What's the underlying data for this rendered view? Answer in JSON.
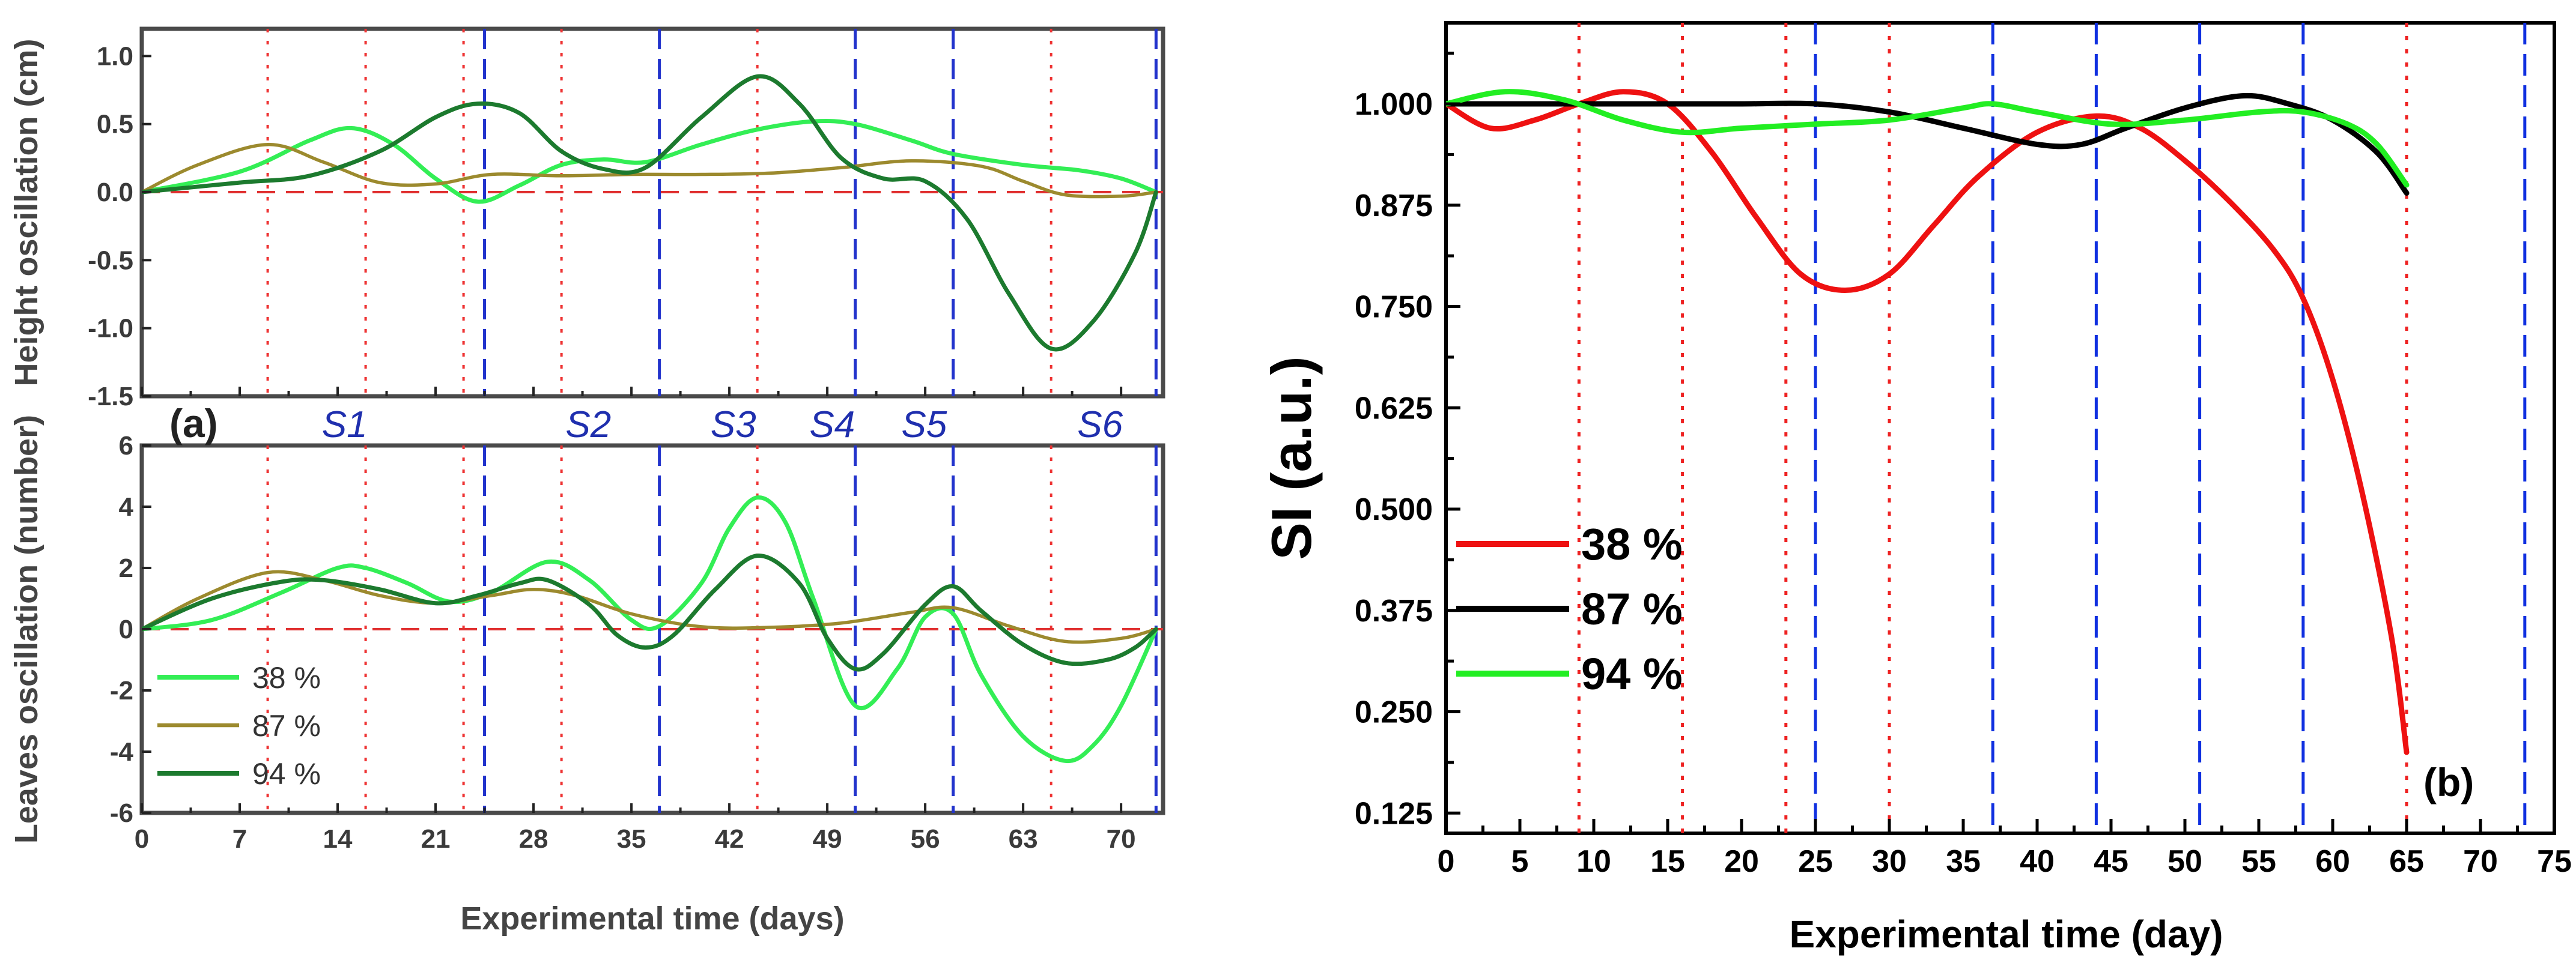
{
  "chart_data": [
    {
      "panel": "(a)",
      "type": "line",
      "xlabel": "Experimental time (days)",
      "xlim": [
        0,
        73
      ],
      "xticks": [
        0,
        7,
        14,
        21,
        28,
        35,
        42,
        49,
        56,
        63,
        70
      ],
      "red_dotted_lines_x": [
        9,
        16,
        23,
        30,
        44,
        65
      ],
      "blue_dashed_lines_x": [
        24.5,
        37,
        51,
        58,
        72.5
      ],
      "stages": [
        "S1",
        "S2",
        "S3",
        "S4",
        "S5",
        "S6"
      ],
      "legend": [
        "38 %",
        "87 %",
        "94 %"
      ],
      "colors": {
        "38 %": "#33ee55",
        "87 %": "#9c8a2e",
        "94 %": "#1c7a2e",
        "zero": "#e03030",
        "red_lines": "#ee3333",
        "blue_lines": "#2233cc",
        "stage_text": "#1f2fae"
      },
      "subplots": [
        {
          "ylabel": "Height oscillation (cm)",
          "ylim": [
            -1.5,
            1.2
          ],
          "yticks": [
            "1.0",
            "0.5",
            "0.0",
            "-0.5",
            "-1.0",
            "-1.5"
          ],
          "ytick_values": [
            1.0,
            0.5,
            0.0,
            -0.5,
            -1.0,
            -1.5
          ],
          "series": [
            {
              "name": "38 %",
              "x": [
                0,
                7,
                12,
                15,
                18,
                21,
                24,
                27,
                30,
                33,
                36,
                40,
                44,
                48,
                51,
                55,
                58,
                63,
                67,
                70,
                72.5
              ],
              "values": [
                0,
                0.15,
                0.38,
                0.47,
                0.35,
                0.1,
                -0.07,
                0.05,
                0.2,
                0.24,
                0.22,
                0.35,
                0.46,
                0.52,
                0.5,
                0.38,
                0.28,
                0.2,
                0.16,
                0.1,
                0
              ]
            },
            {
              "name": "87 %",
              "x": [
                0,
                4,
                9,
                13,
                17,
                21,
                25,
                30,
                35,
                40,
                45,
                50,
                55,
                60,
                63,
                66,
                70,
                72.5
              ],
              "values": [
                0,
                0.2,
                0.35,
                0.22,
                0.07,
                0.06,
                0.13,
                0.12,
                0.13,
                0.13,
                0.14,
                0.18,
                0.23,
                0.19,
                0.08,
                -0.02,
                -0.03,
                0
              ]
            },
            {
              "name": "94 %",
              "x": [
                0,
                7,
                12,
                17,
                21,
                24,
                27,
                30,
                33,
                36,
                40,
                44,
                47,
                50,
                53,
                56,
                59,
                62,
                65,
                68,
                71,
                72.5
              ],
              "values": [
                0,
                0.07,
                0.12,
                0.3,
                0.55,
                0.65,
                0.58,
                0.3,
                0.17,
                0.18,
                0.55,
                0.85,
                0.65,
                0.25,
                0.1,
                0.08,
                -0.2,
                -0.75,
                -1.15,
                -0.95,
                -0.45,
                0
              ]
            }
          ]
        },
        {
          "ylabel": "Leaves oscillation (number)",
          "ylim": [
            -6,
            6
          ],
          "yticks": [
            "6",
            "4",
            "2",
            "0",
            "-2",
            "-4",
            "-6"
          ],
          "ytick_values": [
            6,
            4,
            2,
            0,
            -2,
            -4,
            -6
          ],
          "series": [
            {
              "name": "38 %",
              "x": [
                0,
                5,
                10,
                14,
                16,
                19,
                22,
                25,
                29,
                32,
                35,
                37,
                40,
                42,
                44,
                46,
                48,
                51,
                54,
                56,
                58,
                60,
                63,
                66,
                68,
                70,
                72.5
              ],
              "values": [
                0,
                0.3,
                1.2,
                2.0,
                2.0,
                1.5,
                0.9,
                1.2,
                2.2,
                1.6,
                0.3,
                0.1,
                1.5,
                3.3,
                4.3,
                3.5,
                1.0,
                -2.5,
                -1.3,
                0.4,
                0.5,
                -1.5,
                -3.5,
                -4.3,
                -3.8,
                -2.5,
                0
              ]
            },
            {
              "name": "87 %",
              "x": [
                0,
                4,
                9,
                13,
                17,
                21,
                25,
                28,
                31,
                35,
                40,
                45,
                50,
                55,
                58,
                62,
                66,
                70,
                72.5
              ],
              "values": [
                0,
                1.0,
                1.85,
                1.6,
                1.1,
                0.85,
                1.1,
                1.3,
                1.1,
                0.5,
                0.08,
                0.06,
                0.2,
                0.55,
                0.7,
                0.1,
                -0.4,
                -0.3,
                0
              ]
            },
            {
              "name": "94 %",
              "x": [
                0,
                5,
                10,
                13,
                17,
                21,
                24,
                27,
                29,
                32,
                34,
                36,
                38,
                41,
                44,
                47,
                49,
                51,
                53,
                56,
                58,
                60,
                63,
                66,
                69,
                71,
                72.5
              ],
              "values": [
                0,
                1.0,
                1.55,
                1.6,
                1.3,
                0.85,
                1.1,
                1.5,
                1.6,
                0.8,
                -0.2,
                -0.6,
                -0.2,
                1.3,
                2.4,
                1.5,
                -0.3,
                -1.3,
                -0.8,
                0.8,
                1.4,
                0.6,
                -0.5,
                -1.1,
                -1.0,
                -0.6,
                0
              ]
            }
          ]
        }
      ]
    },
    {
      "panel": "(b)",
      "type": "line",
      "xlabel": "Experimental time (day)",
      "ylabel": "SI (a.u.)",
      "xlim": [
        0,
        75
      ],
      "ylim": [
        0.1,
        1.1
      ],
      "xticks": [
        0,
        5,
        10,
        15,
        20,
        25,
        30,
        35,
        40,
        45,
        50,
        55,
        60,
        65,
        70,
        75
      ],
      "yticks": [
        "0.125",
        "0.250",
        "0.375",
        "0.500",
        "0.625",
        "0.750",
        "0.875",
        "1.000"
      ],
      "ytick_values": [
        0.125,
        0.25,
        0.375,
        0.5,
        0.625,
        0.75,
        0.875,
        1.0
      ],
      "red_dotted_lines_x": [
        9,
        16,
        23,
        30,
        65
      ],
      "blue_dashed_lines_x": [
        25,
        37,
        44,
        51,
        58,
        73
      ],
      "legend": [
        "38 %",
        "87 %",
        "94 %"
      ],
      "colors": {
        "38 %": "#ee1111",
        "87 %": "#000000",
        "94 %": "#22ee22",
        "red_lines": "#ee2222",
        "blue_lines": "#1030e0"
      },
      "series": [
        {
          "name": "38 %",
          "x": [
            0,
            3,
            6,
            9,
            12,
            15,
            18,
            21,
            24,
            27,
            30,
            33,
            36,
            40,
            44,
            47,
            50,
            53,
            56,
            58,
            60,
            62,
            64,
            65
          ],
          "values": [
            1.0,
            0.97,
            0.98,
            1.0,
            1.015,
            1.0,
            0.94,
            0.86,
            0.79,
            0.77,
            0.79,
            0.85,
            0.91,
            0.965,
            0.985,
            0.97,
            0.93,
            0.88,
            0.82,
            0.76,
            0.66,
            0.52,
            0.34,
            0.2
          ]
        },
        {
          "name": "87 %",
          "x": [
            0,
            5,
            10,
            15,
            20,
            25,
            30,
            35,
            40,
            43,
            46,
            50,
            54,
            57,
            60,
            63,
            65
          ],
          "values": [
            1.0,
            1.0,
            1.0,
            1.0,
            1.0,
            1.0,
            0.99,
            0.97,
            0.95,
            0.95,
            0.97,
            0.995,
            1.01,
            1.0,
            0.98,
            0.94,
            0.89
          ]
        },
        {
          "name": "94 %",
          "x": [
            0,
            4,
            8,
            12,
            16,
            20,
            25,
            30,
            35,
            37,
            40,
            45,
            50,
            55,
            58,
            61,
            63,
            65
          ],
          "values": [
            1.0,
            1.015,
            1.005,
            0.98,
            0.965,
            0.97,
            0.975,
            0.98,
            0.995,
            1.0,
            0.99,
            0.975,
            0.98,
            0.99,
            0.99,
            0.975,
            0.95,
            0.9
          ]
        }
      ]
    }
  ]
}
